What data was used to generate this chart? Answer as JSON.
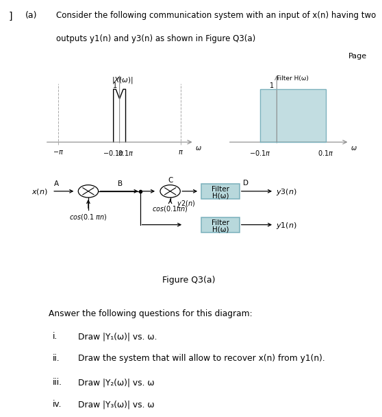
{
  "title_a": "(a)",
  "title_text": "Consider the following communication system with an input of x(n) having two\noutputs y1(n) and y3(n) as shown in Figure Q3(a)",
  "figure_caption": "Figure Q3(a)",
  "page_text": "Page",
  "answer_header": "Answer the following questions for this diagram:",
  "questions": [
    "Draw |Y₁(ω)| vs. ω.",
    "Draw the system that will allow to recover x(n) from y1(n).",
    "Draw |Y₂(ω)| vs. ω",
    "Draw |Y₃(ω)| vs. ω"
  ],
  "question_labels": [
    "i.",
    "ii.",
    "iii.",
    "iv."
  ],
  "filter_color": "#b8d8dc",
  "filter_edge_color": "#7ab0bc",
  "spectrum_line_color": "black",
  "axis_color": "#888888",
  "dashed_color": "#aaaaaa"
}
